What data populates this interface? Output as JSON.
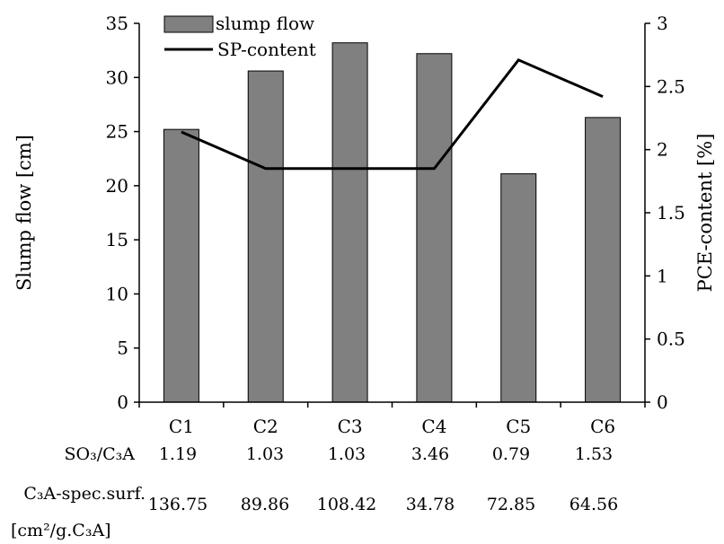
{
  "chart_data": {
    "type": "bar",
    "categories": [
      "C1",
      "C2",
      "C3",
      "C4",
      "C5",
      "C6"
    ],
    "series": [
      {
        "name": "slump flow",
        "type": "bar",
        "axis": "left",
        "color": "#808080",
        "values": [
          25.2,
          30.6,
          33.2,
          32.2,
          21.1,
          26.3
        ]
      },
      {
        "name": "SP-content",
        "type": "line",
        "axis": "right",
        "color": "#000000",
        "values": [
          2.14,
          1.85,
          1.85,
          1.85,
          2.71,
          2.42
        ]
      }
    ],
    "ylabel": "Slump flow [cm]",
    "y2label": "PCE-content [%]",
    "ylim": [
      0,
      35
    ],
    "y2lim": [
      0,
      3
    ],
    "yticks": [
      "0",
      "5",
      "10",
      "15",
      "20",
      "25",
      "30",
      "35"
    ],
    "y2ticks": [
      "0",
      "0.5",
      "1",
      "1.5",
      "2",
      "2.5",
      "3"
    ],
    "legend_position": "top-center",
    "grid": false
  },
  "table": {
    "rows": [
      {
        "label": "SO₃/C₃A",
        "values": [
          "1.19",
          "1.03",
          "1.03",
          "3.46",
          "0.79",
          "1.53"
        ]
      },
      {
        "label": "C₃A-spec.surf.",
        "values": [
          "136.75",
          "89.86",
          "108.42",
          "34.78",
          "72.85",
          "64.56"
        ]
      }
    ],
    "unit_label": "[cm²/g.C₃A]"
  }
}
